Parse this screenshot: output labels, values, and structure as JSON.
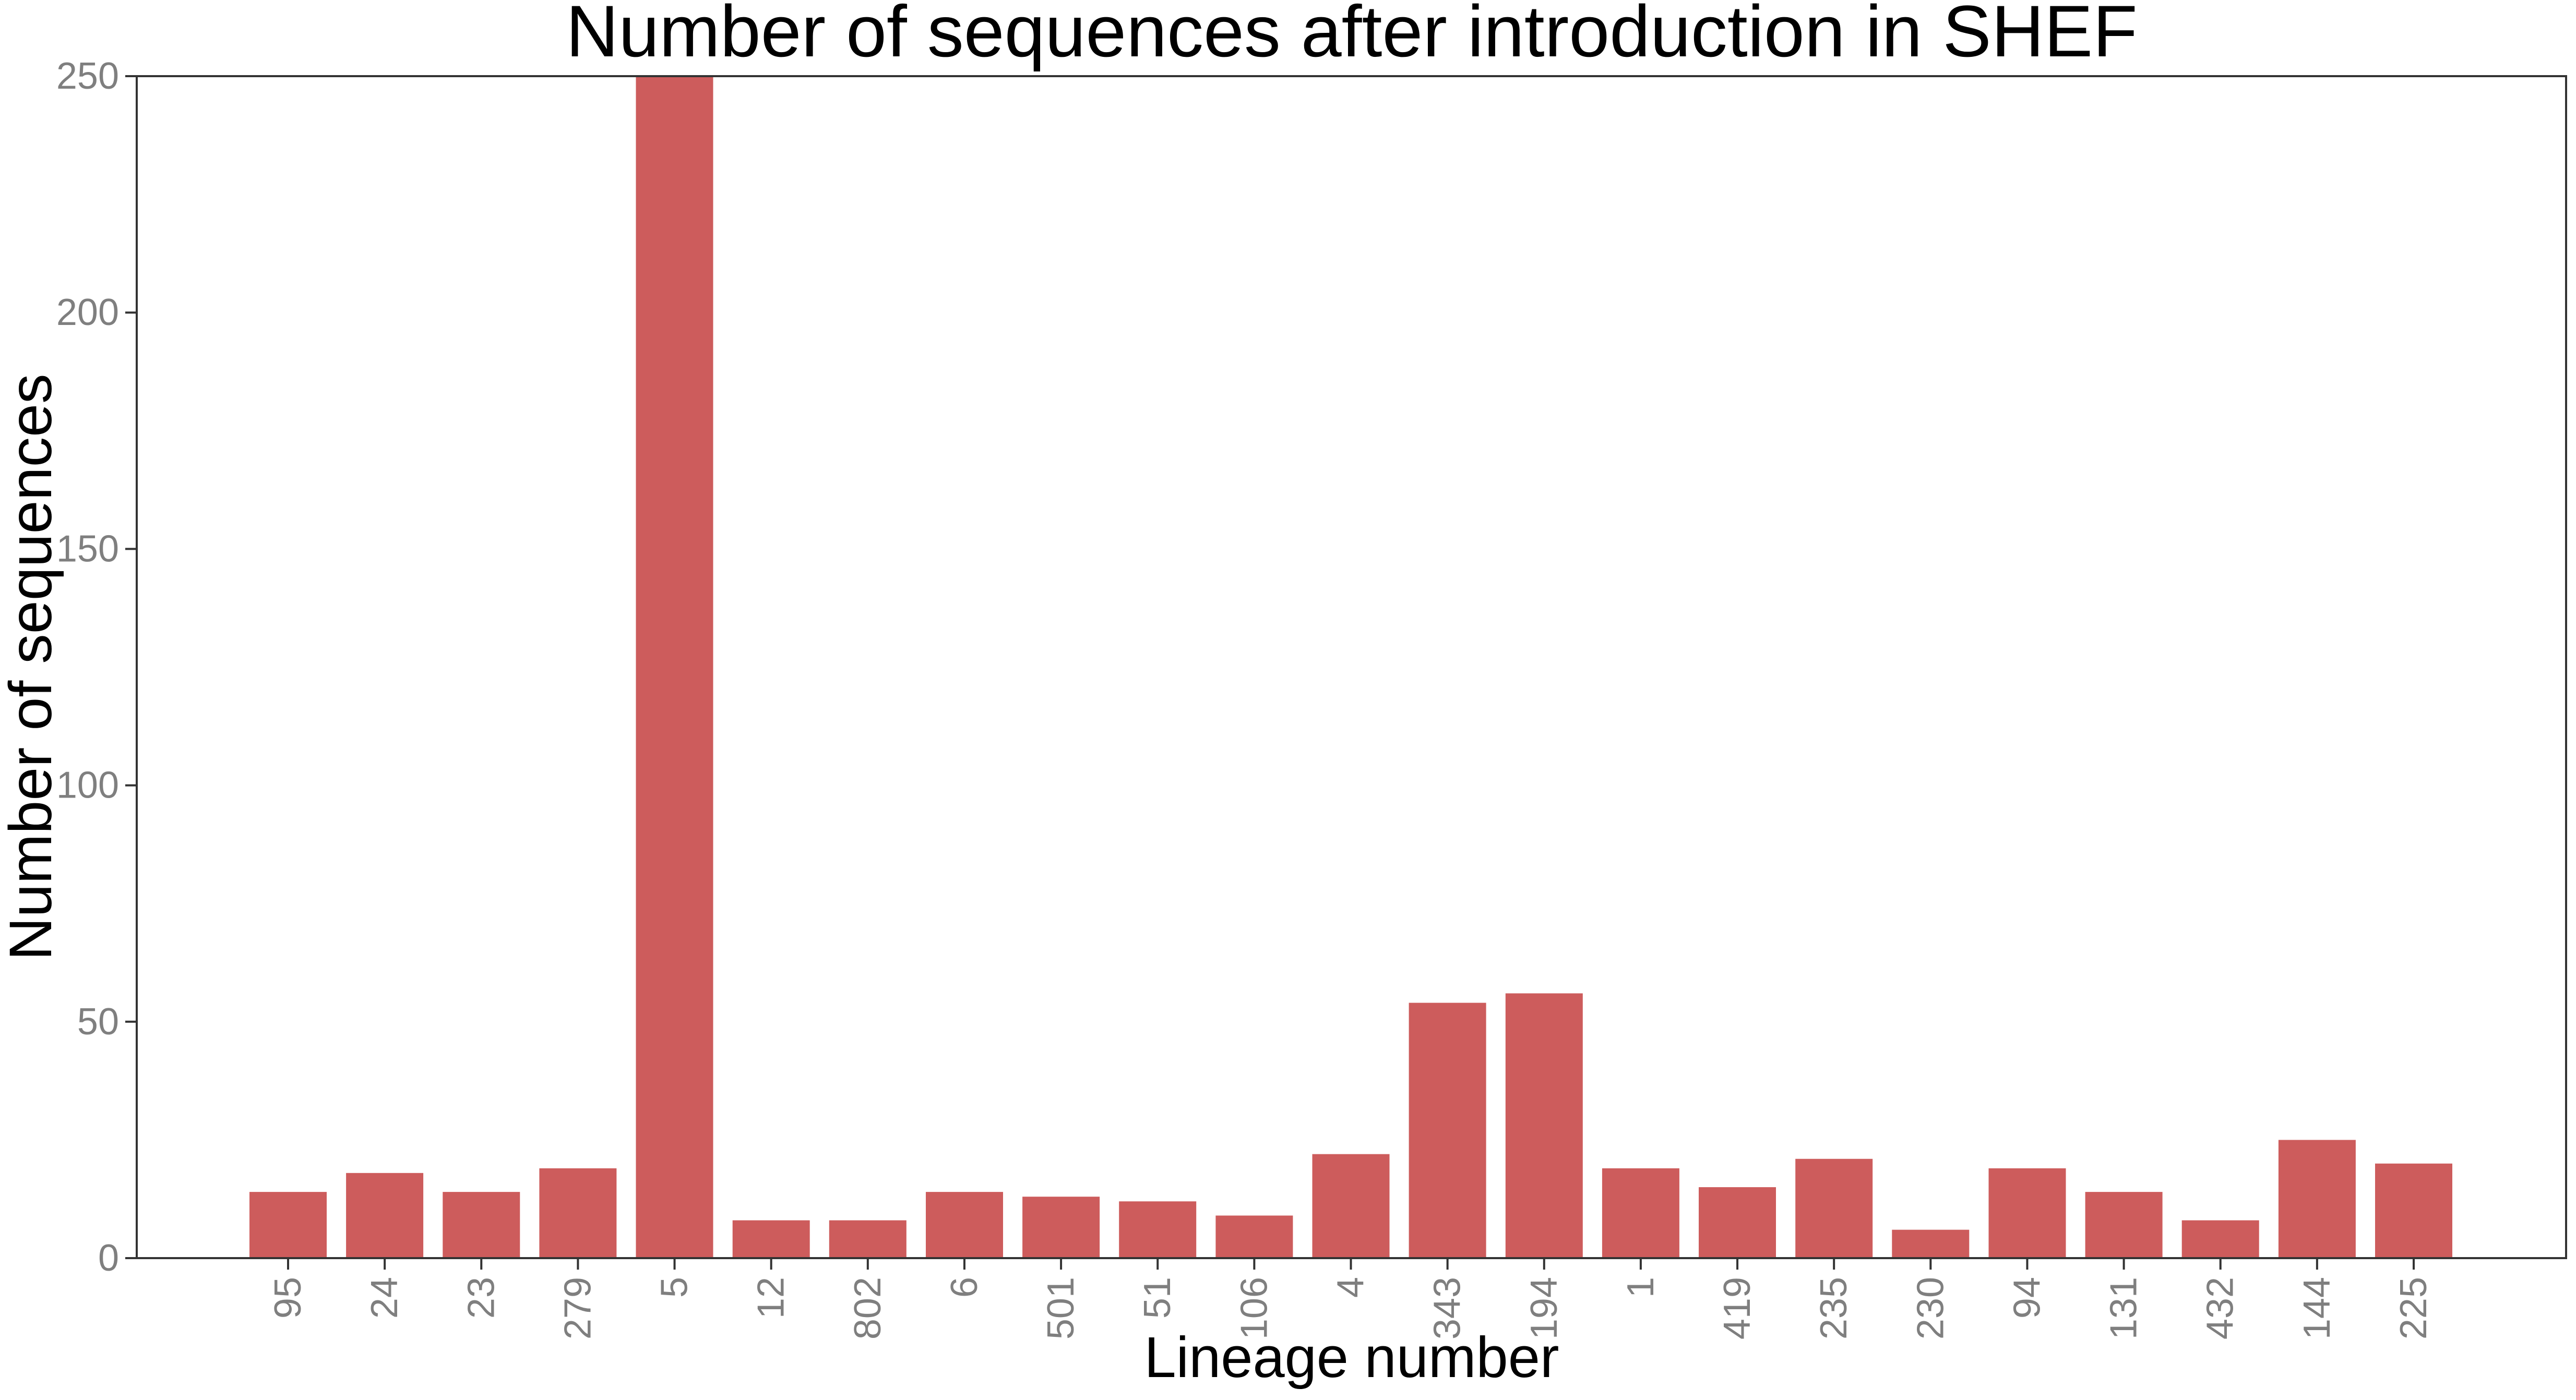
{
  "chart_data": {
    "type": "bar",
    "title": "Number of sequences after introduction in SHEF",
    "xlabel": "Lineage number",
    "ylabel": "Number of sequences",
    "categories": [
      "95",
      "24",
      "23",
      "279",
      "5",
      "12",
      "802",
      "6",
      "501",
      "51",
      "106",
      "4",
      "343",
      "194",
      "1",
      "419",
      "235",
      "230",
      "94",
      "131",
      "432",
      "144",
      "225"
    ],
    "values": [
      14,
      18,
      14,
      19,
      250,
      8,
      8,
      14,
      13,
      12,
      9,
      22,
      54,
      56,
      19,
      15,
      21,
      6,
      19,
      14,
      8,
      25,
      20
    ],
    "ylim": [
      0,
      250
    ],
    "yticks": [
      "0",
      "50",
      "100",
      "150",
      "200",
      "250"
    ],
    "grid": false,
    "legend": "none",
    "bar_color": "#cd5c5c",
    "axis_color": "#333333",
    "tick_label_color": "#7f7f7f"
  }
}
